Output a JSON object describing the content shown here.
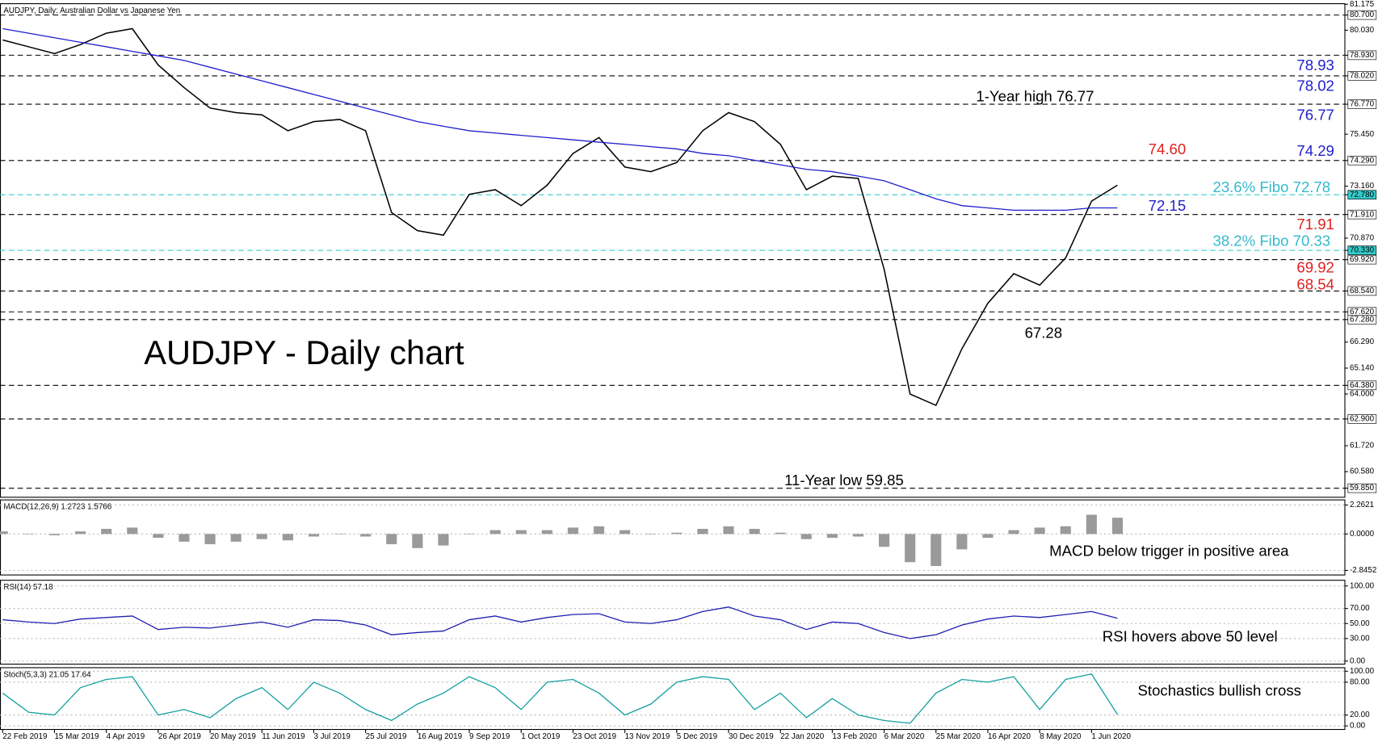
{
  "chart_data": [
    {
      "type": "line",
      "title": "AUDJPY, Daily:  Australian Dollar vs Japanese Yen",
      "categories": [
        "22 Feb 2019",
        null,
        "15 Mar 2019",
        null,
        "4 Apr 2019",
        null,
        "26 Apr 2019",
        null,
        "20 May 2019",
        null,
        "11 Jun 2019",
        null,
        "3 Jul 2019",
        null,
        "25 Jul 2019",
        null,
        "16 Aug 2019",
        null,
        "9 Sep 2019",
        null,
        "1 Oct 2019",
        null,
        "23 Oct 2019",
        null,
        "13 Nov 2019",
        null,
        "5 Dec 2019",
        null,
        "30 Dec 2019",
        null,
        "22 Jan 2020",
        null,
        "13 Feb 2020",
        null,
        "6 Mar 2020",
        null,
        "25 Mar 2020",
        null,
        "16 Apr 2020",
        null,
        "8 May 2020",
        null,
        "1 Jun 2020",
        null
      ],
      "series": [
        {
          "color": "#000000",
          "values": [
            79.6,
            79.3,
            79.0,
            79.4,
            79.9,
            80.1,
            78.5,
            77.5,
            76.6,
            76.4,
            76.3,
            75.6,
            76.0,
            76.1,
            75.6,
            72.0,
            71.2,
            71.0,
            72.8,
            73.0,
            72.3,
            73.2,
            74.6,
            75.3,
            74.0,
            73.8,
            74.2,
            75.6,
            76.4,
            76.0,
            75.0,
            73.0,
            73.6,
            73.5,
            69.5,
            64.0,
            63.5,
            66.0,
            68.0,
            69.3,
            68.8,
            70.0,
            72.5,
            73.2
          ]
        },
        {
          "color": "#1f1fcc",
          "values": [
            80.1,
            79.9,
            79.7,
            79.5,
            79.3,
            79.1,
            78.9,
            78.7,
            78.4,
            78.1,
            77.8,
            77.5,
            77.2,
            76.9,
            76.6,
            76.3,
            76.0,
            75.8,
            75.6,
            75.5,
            75.4,
            75.3,
            75.2,
            75.1,
            75.0,
            74.9,
            74.8,
            74.6,
            74.5,
            74.3,
            74.1,
            73.9,
            73.8,
            73.6,
            73.4,
            73.0,
            72.6,
            72.3,
            72.2,
            72.1,
            72.1,
            72.1,
            72.2,
            72.2
          ]
        }
      ],
      "ylim": [
        59.45,
        81.2
      ],
      "yticks": [
        {
          "value": 81.175,
          "label": "81.175"
        },
        {
          "value": 80.7,
          "label": "80.700"
        },
        {
          "value": 80.03,
          "label": "80.030"
        },
        {
          "value": 78.93,
          "label": "78.930"
        },
        {
          "value": 78.02,
          "label": "78.020"
        },
        {
          "value": 76.77,
          "label": "76.770"
        },
        {
          "value": 75.45,
          "label": "75.450"
        },
        {
          "value": 74.29,
          "label": "74.290"
        },
        {
          "value": 73.16,
          "label": "73.160"
        },
        {
          "value": 72.78,
          "label": "72.780"
        },
        {
          "value": 71.91,
          "label": "71.910"
        },
        {
          "value": 70.87,
          "label": "70.870"
        },
        {
          "value": 70.33,
          "label": "70.330"
        },
        {
          "value": 69.92,
          "label": "69.920"
        },
        {
          "value": 68.54,
          "label": "68.540"
        },
        {
          "value": 67.62,
          "label": "67.620"
        },
        {
          "value": 67.28,
          "label": "67.280"
        },
        {
          "value": 66.29,
          "label": "66.290"
        },
        {
          "value": 65.14,
          "label": "65.140"
        },
        {
          "value": 64.38,
          "label": "64.380"
        },
        {
          "value": 64,
          "label": "64.000"
        },
        {
          "value": 62.9,
          "label": "62.900"
        },
        {
          "value": 61.72,
          "label": "61.720"
        },
        {
          "value": 60.58,
          "label": "60.580"
        },
        {
          "value": 59.85,
          "label": "59.850"
        }
      ],
      "levels": [
        {
          "value": 80.7,
          "color": "#000000"
        },
        {
          "value": 78.93,
          "color": "#000000"
        },
        {
          "value": 78.02,
          "color": "#000000"
        },
        {
          "value": 76.77,
          "color": "#000000"
        },
        {
          "value": 74.29,
          "color": "#000000"
        },
        {
          "value": 72.78,
          "color": "#33cccc"
        },
        {
          "value": 71.91,
          "color": "#000000"
        },
        {
          "value": 70.33,
          "color": "#33cccc"
        },
        {
          "value": 69.92,
          "color": "#000000"
        },
        {
          "value": 68.54,
          "color": "#000000"
        },
        {
          "value": 67.62,
          "color": "#000000"
        },
        {
          "value": 67.28,
          "color": "#000000"
        },
        {
          "value": 64.38,
          "color": "#000000"
        },
        {
          "value": 62.9,
          "color": "#000000"
        },
        {
          "value": 59.85,
          "color": "#000000"
        }
      ],
      "annotations": [
        {
          "text": "AUDJPY - Daily chart",
          "color": "#000000"
        },
        {
          "text": "1-Year high 76.77",
          "color": "#000000"
        },
        {
          "text": "11-Year low 59.85",
          "color": "#000000"
        },
        {
          "text": "67.28",
          "color": "#000000"
        },
        {
          "text": "78.93",
          "color": "#1f1fcc"
        },
        {
          "text": "78.02",
          "color": "#1f1fcc"
        },
        {
          "text": "76.77",
          "color": "#1f1fcc"
        },
        {
          "text": "74.60",
          "color": "#e02020"
        },
        {
          "text": "74.29",
          "color": "#1f1fcc"
        },
        {
          "text": "23.6% Fibo 72.78",
          "color": "#33bbcc"
        },
        {
          "text": "72.15",
          "color": "#1f1fcc"
        },
        {
          "text": "71.91",
          "color": "#e02020"
        },
        {
          "text": "38.2% Fibo 70.33",
          "color": "#33bbcc"
        },
        {
          "text": "69.92",
          "color": "#e02020"
        },
        {
          "text": "68.54",
          "color": "#e02020"
        }
      ]
    },
    {
      "type": "bar",
      "title": "MACD(12,26,9) 1.2723 1.5766",
      "color": "#9a9a9a",
      "values": [
        0.2,
        0.0,
        -0.1,
        0.2,
        0.4,
        0.5,
        -0.3,
        -0.6,
        -0.8,
        -0.6,
        -0.4,
        -0.5,
        -0.2,
        0.0,
        -0.2,
        -0.8,
        -1.1,
        -0.9,
        0.0,
        0.3,
        0.3,
        0.3,
        0.5,
        0.6,
        0.3,
        0.0,
        0.1,
        0.4,
        0.6,
        0.4,
        0.1,
        -0.4,
        -0.3,
        -0.2,
        -1.0,
        -2.2,
        -2.5,
        -1.2,
        -0.3,
        0.3,
        0.5,
        0.6,
        1.5,
        1.27
      ],
      "ylim": [
        -3.2,
        2.66
      ],
      "yticks": [
        2.2621,
        {
          "value": 0,
          "label": "0.0000"
        },
        -2.8452
      ],
      "annotations": [
        {
          "text": "MACD below trigger in positive area",
          "color": "#000000"
        }
      ]
    },
    {
      "type": "line",
      "title": "RSI(14) 57.18",
      "series": [
        {
          "color": "#2020b0",
          "values": [
            55,
            52,
            50,
            56,
            58,
            60,
            42,
            45,
            44,
            48,
            52,
            45,
            55,
            54,
            48,
            35,
            38,
            40,
            55,
            60,
            52,
            58,
            62,
            63,
            52,
            50,
            55,
            66,
            72,
            60,
            55,
            42,
            52,
            50,
            38,
            30,
            35,
            48,
            56,
            60,
            58,
            62,
            66,
            57
          ]
        }
      ],
      "ylim": [
        -4.1,
        107.6
      ],
      "yticks": [
        {
          "value": 100,
          "label": "100.00"
        },
        {
          "value": 70,
          "label": "70.00"
        },
        {
          "value": 50,
          "label": "50.00"
        },
        {
          "value": 30,
          "label": "30.00"
        },
        {
          "value": 0,
          "label": "0.00"
        }
      ],
      "annotations": [
        {
          "text": "RSI hovers above 50 level",
          "color": "#000000"
        }
      ]
    },
    {
      "type": "line",
      "title": "Stoch(5,3,3) 21.05 17.64",
      "series": [
        {
          "color": "#14a0a0",
          "values": [
            60,
            25,
            20,
            70,
            85,
            90,
            20,
            30,
            15,
            50,
            70,
            30,
            80,
            60,
            30,
            10,
            40,
            60,
            90,
            70,
            30,
            80,
            85,
            60,
            20,
            40,
            80,
            90,
            85,
            30,
            60,
            15,
            50,
            20,
            10,
            5,
            60,
            85,
            80,
            90,
            30,
            85,
            95,
            21
          ]
        }
      ],
      "ylim": [
        -6.5,
        106.5
      ],
      "yticks": [
        {
          "value": 100,
          "label": "100.00"
        },
        {
          "value": 80,
          "label": "80.00"
        },
        {
          "value": 20,
          "label": "20.00"
        },
        {
          "value": 0,
          "label": "0.00"
        }
      ],
      "annotations": [
        {
          "text": "Stochastics bullish cross",
          "color": "#000000"
        }
      ]
    }
  ]
}
